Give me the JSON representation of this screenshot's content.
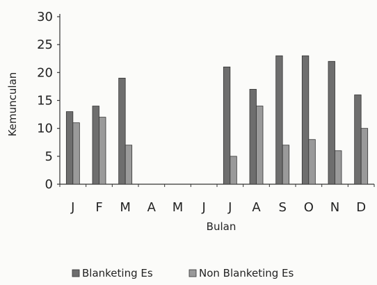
{
  "chart_data": {
    "type": "bar",
    "title": "",
    "xlabel": "Bulan",
    "ylabel": "Kemunculan",
    "ylim": [
      0,
      30
    ],
    "yticks": [
      0,
      5,
      10,
      15,
      20,
      25,
      30
    ],
    "grid": false,
    "legend_position": "bottom",
    "categories": [
      "J",
      "F",
      "M",
      "A",
      "M",
      "J",
      "J",
      "A",
      "S",
      "O",
      "N",
      "D"
    ],
    "series": [
      {
        "name": "Blanketing Es",
        "color": "#6e6e6e",
        "values": [
          13,
          14,
          19,
          0,
          0,
          0,
          21,
          17,
          23,
          23,
          22,
          16
        ]
      },
      {
        "name": "Non Blanketing Es",
        "color": "#9a9a9a",
        "values": [
          11,
          12,
          7,
          0,
          0,
          0,
          5,
          14,
          7,
          8,
          6,
          10
        ]
      }
    ]
  }
}
